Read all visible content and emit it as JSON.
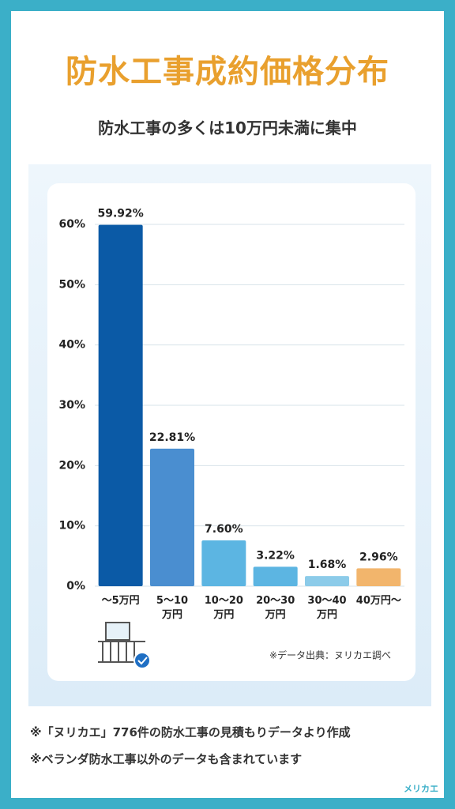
{
  "chart_data": {
    "type": "bar",
    "title": "防水工事成約価格分布",
    "subtitle": "防水工事の多くは10万円未満に集中",
    "categories": [
      "～5万円",
      "5～10\n万円",
      "10～20\n万円",
      "20～30\n万円",
      "30～40\n万円",
      "40万円～"
    ],
    "values": [
      59.92,
      22.81,
      7.6,
      3.22,
      1.68,
      2.96
    ],
    "value_labels": [
      "59.92%",
      "22.81%",
      "7.60%",
      "3.22%",
      "1.68%",
      "2.96%"
    ],
    "colors": [
      "#0b5aa6",
      "#4a8ed0",
      "#5cb5e2",
      "#5cb5e2",
      "#8ccbe9",
      "#f2b56c"
    ],
    "ylim": [
      0,
      60
    ],
    "yticks": [
      {
        "value": 0,
        "label": "0%"
      },
      {
        "value": 10,
        "label": "10%"
      },
      {
        "value": 20,
        "label": "20%"
      },
      {
        "value": 30,
        "label": "30%"
      },
      {
        "value": 40,
        "label": "40%"
      },
      {
        "value": 50,
        "label": "50%"
      },
      {
        "value": 60,
        "label": "60%"
      }
    ],
    "grid": true,
    "source": "※データ出典：ヌリカエ調べ"
  },
  "footnotes": [
    "※「ヌリカエ」776件の防水工事の見積もりデータより作成",
    "※ベランダ防水工事以外のデータも含まれています"
  ],
  "brand": "メリカエ"
}
